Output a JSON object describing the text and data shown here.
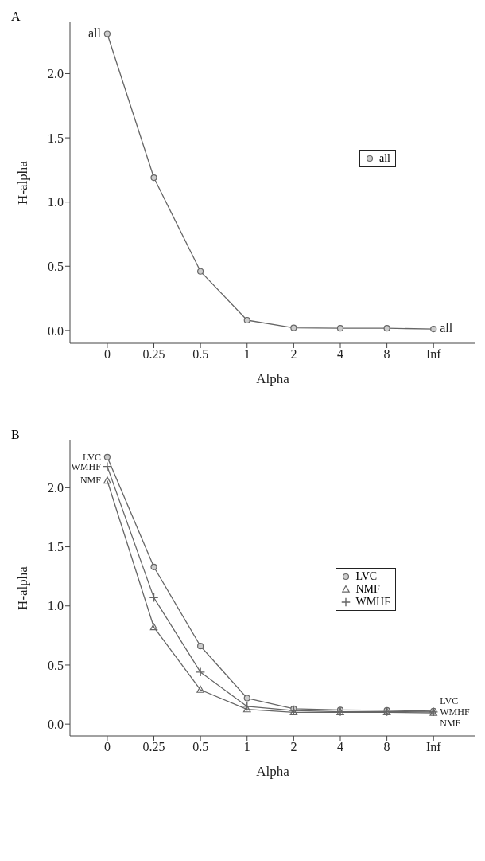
{
  "chart_data": [
    {
      "type": "line",
      "title": "A",
      "xlabel": "Alpha",
      "ylabel": "H-alpha",
      "categories": [
        "0",
        "0.25",
        "0.5",
        "1",
        "2",
        "4",
        "8",
        "Inf"
      ],
      "series": [
        {
          "name": "all",
          "color": "#666666",
          "marker": "circle",
          "values": [
            2.31,
            1.19,
            0.46,
            0.08,
            0.02,
            0.017,
            0.017,
            0.011
          ]
        }
      ],
      "ylim": [
        -0.1,
        2.4
      ],
      "yticks": [
        {
          "value": 0,
          "label": "0.0"
        },
        {
          "value": 0.5,
          "label": "0.5"
        },
        {
          "value": 1,
          "label": "1.0"
        },
        {
          "value": 1.5,
          "label": "1.5"
        },
        {
          "value": 2,
          "label": "2.0"
        }
      ],
      "grid": false,
      "legend": "right",
      "line_style": "solid",
      "annotations": [
        {
          "text": "all",
          "x": "0",
          "y": 2.31
        },
        {
          "text": "all",
          "x": "Inf",
          "y": 0.011
        }
      ]
    },
    {
      "type": "line",
      "title": "B",
      "xlabel": "Alpha",
      "ylabel": "H-alpha",
      "categories": [
        "0",
        "0.25",
        "0.5",
        "1",
        "2",
        "4",
        "8",
        "Inf"
      ],
      "series": [
        {
          "name": "LVC",
          "color": "#666666",
          "marker": "circle",
          "values": [
            2.26,
            1.33,
            0.66,
            0.22,
            0.13,
            0.12,
            0.116,
            0.11
          ]
        },
        {
          "name": "NMF",
          "color": "#666666",
          "marker": "triangle",
          "values": [
            2.06,
            0.82,
            0.29,
            0.125,
            0.1,
            0.1,
            0.1,
            0.095
          ]
        },
        {
          "name": "WMHF",
          "color": "#666666",
          "marker": "cross",
          "values": [
            2.18,
            1.07,
            0.44,
            0.15,
            0.115,
            0.105,
            0.105,
            0.103
          ]
        }
      ],
      "ylim": [
        -0.1,
        2.4
      ],
      "yticks": [
        {
          "value": 0,
          "label": "0.0"
        },
        {
          "value": 0.5,
          "label": "0.5"
        },
        {
          "value": 1,
          "label": "1.0"
        },
        {
          "value": 1.5,
          "label": "1.5"
        },
        {
          "value": 2,
          "label": "2.0"
        }
      ],
      "grid": false,
      "legend": "right",
      "line_style": "solid",
      "annotations": [
        {
          "text": "LVC",
          "x": "0",
          "y": 2.26
        },
        {
          "text": "WMHF",
          "x": "0",
          "y": 2.18
        },
        {
          "text": "NMF",
          "x": "0",
          "y": 2.06
        },
        {
          "text": "LVC",
          "x": "Inf",
          "y": 0.11
        },
        {
          "text": "WMHF",
          "x": "Inf",
          "y": 0.103
        },
        {
          "text": "NMF",
          "x": "Inf",
          "y": 0.095
        }
      ]
    }
  ]
}
